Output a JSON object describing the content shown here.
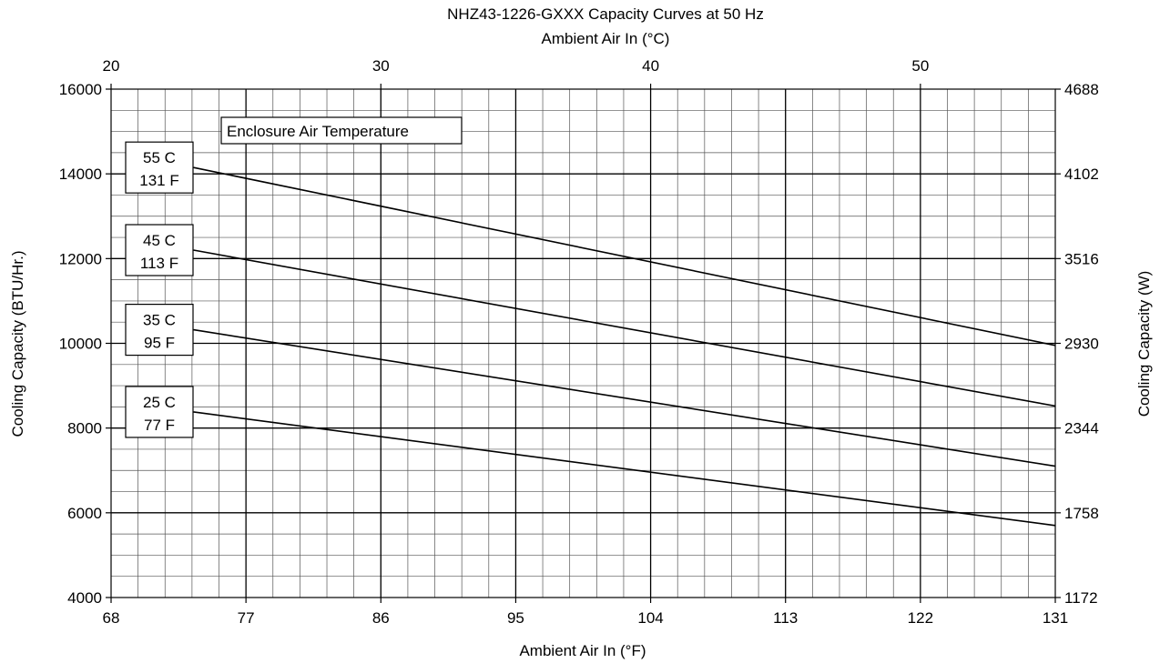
{
  "chart_data": {
    "type": "line",
    "title": "NHZ43-1226-GXXX Capacity Curves at 50 Hz",
    "xlabel": "Ambient Air In (°F)",
    "x2label": "Ambient Air In (°C)",
    "ylabel": "Cooling Capacity (BTU/Hr.)",
    "y2label": "Cooling Capacity (W)",
    "xlim": [
      68,
      131
    ],
    "ylim": [
      4000,
      16000
    ],
    "x_ticks": [
      "68",
      "77",
      "86",
      "95",
      "104",
      "113",
      "122",
      "131"
    ],
    "x2_ticks": [
      "20",
      "30",
      "40",
      "50"
    ],
    "y_ticks": [
      "4000",
      "6000",
      "8000",
      "10000",
      "12000",
      "14000",
      "16000"
    ],
    "y2_ticks": [
      "1172",
      "1758",
      "2344",
      "2930",
      "3516",
      "4102",
      "4688"
    ],
    "legend_title": "Enclosure Air Temperature",
    "grid": true,
    "series": [
      {
        "name": "55 C 131 F",
        "label_c": "55 C",
        "label_f": "131 F",
        "x": [
          73.5,
          131
        ],
        "y": [
          14150,
          9950
        ]
      },
      {
        "name": "45 C 113 F",
        "label_c": "45 C",
        "label_f": "113 F",
        "x": [
          73.5,
          131
        ],
        "y": [
          12200,
          8520
        ]
      },
      {
        "name": "35 C 95 F",
        "label_c": "35 C",
        "label_f": "95 F",
        "x": [
          73.5,
          131
        ],
        "y": [
          10320,
          7100
        ]
      },
      {
        "name": "25 C 77 F",
        "label_c": "25 C",
        "label_f": "77 F",
        "x": [
          73.5,
          131
        ],
        "y": [
          8380,
          5700
        ]
      }
    ]
  }
}
